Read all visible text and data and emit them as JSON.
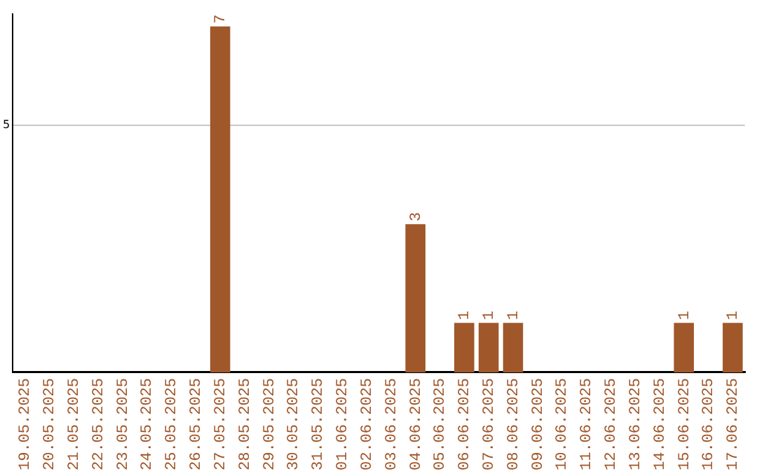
{
  "chart_data": {
    "type": "bar",
    "categories": [
      "19.05.2025",
      "20.05.2025",
      "21.05.2025",
      "22.05.2025",
      "23.05.2025",
      "24.05.2025",
      "25.05.2025",
      "26.05.2025",
      "27.05.2025",
      "28.05.2025",
      "29.05.2025",
      "30.05.2025",
      "31.05.2025",
      "01.06.2025",
      "02.06.2025",
      "03.06.2025",
      "04.06.2025",
      "05.06.2025",
      "06.06.2025",
      "07.06.2025",
      "08.06.2025",
      "09.06.2025",
      "10.06.2025",
      "11.06.2025",
      "12.06.2025",
      "13.06.2025",
      "14.06.2025",
      "15.06.2025",
      "16.06.2025",
      "17.06.2025"
    ],
    "values": [
      0,
      0,
      0,
      0,
      0,
      0,
      0,
      0,
      7,
      0,
      0,
      0,
      0,
      0,
      0,
      0,
      3,
      0,
      1,
      1,
      1,
      0,
      0,
      0,
      0,
      0,
      0,
      1,
      0,
      1
    ],
    "value_labels": [
      null,
      null,
      null,
      null,
      null,
      null,
      null,
      null,
      "7",
      null,
      null,
      null,
      null,
      null,
      null,
      null,
      "3",
      null,
      "1",
      "1",
      "1",
      null,
      null,
      null,
      null,
      null,
      null,
      "1",
      null,
      "1"
    ],
    "color": "#a0572a",
    "ylim": [
      0,
      7.25
    ],
    "yticks": [
      5
    ],
    "grid": "y",
    "legend": false
  }
}
